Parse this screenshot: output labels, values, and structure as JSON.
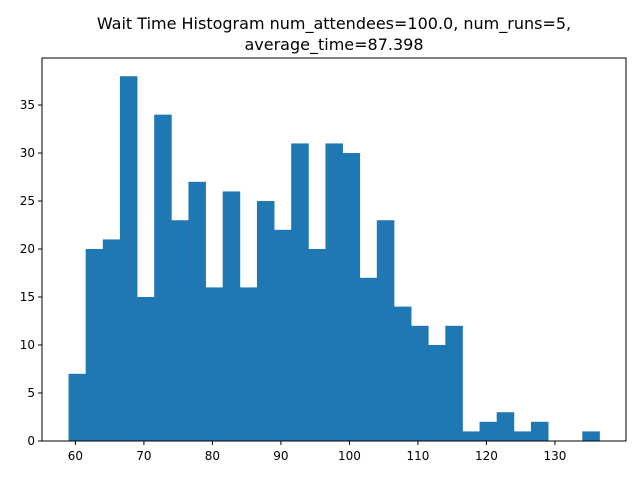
{
  "chart_data": {
    "type": "bar",
    "title_line1": "Wait Time Histogram num_attendees=100.0, num_runs=5,",
    "title_line2": "average_time=87.398",
    "bins": [
      {
        "x0": 59.0,
        "x1": 61.5,
        "count": 7
      },
      {
        "x0": 61.5,
        "x1": 64.0,
        "count": 20
      },
      {
        "x0": 64.0,
        "x1": 66.5,
        "count": 21
      },
      {
        "x0": 66.5,
        "x1": 69.0,
        "count": 38
      },
      {
        "x0": 69.0,
        "x1": 71.5,
        "count": 15
      },
      {
        "x0": 71.5,
        "x1": 74.0,
        "count": 34
      },
      {
        "x0": 74.0,
        "x1": 76.5,
        "count": 23
      },
      {
        "x0": 76.5,
        "x1": 79.0,
        "count": 27
      },
      {
        "x0": 79.0,
        "x1": 81.5,
        "count": 16
      },
      {
        "x0": 81.5,
        "x1": 84.0,
        "count": 26
      },
      {
        "x0": 84.0,
        "x1": 86.5,
        "count": 16
      },
      {
        "x0": 86.5,
        "x1": 89.0,
        "count": 25
      },
      {
        "x0": 89.0,
        "x1": 91.5,
        "count": 22
      },
      {
        "x0": 91.5,
        "x1": 94.0,
        "count": 31
      },
      {
        "x0": 94.0,
        "x1": 96.5,
        "count": 20
      },
      {
        "x0": 96.5,
        "x1": 99.0,
        "count": 31
      },
      {
        "x0": 99.0,
        "x1": 101.5,
        "count": 30
      },
      {
        "x0": 101.5,
        "x1": 104.0,
        "count": 17
      },
      {
        "x0": 104.0,
        "x1": 106.5,
        "count": 23
      },
      {
        "x0": 106.5,
        "x1": 109.0,
        "count": 14
      },
      {
        "x0": 109.0,
        "x1": 111.5,
        "count": 12
      },
      {
        "x0": 111.5,
        "x1": 114.0,
        "count": 10
      },
      {
        "x0": 114.0,
        "x1": 116.5,
        "count": 12
      },
      {
        "x0": 116.5,
        "x1": 119.0,
        "count": 1
      },
      {
        "x0": 119.0,
        "x1": 121.5,
        "count": 2
      },
      {
        "x0": 121.5,
        "x1": 124.0,
        "count": 3
      },
      {
        "x0": 124.0,
        "x1": 126.5,
        "count": 1
      },
      {
        "x0": 126.5,
        "x1": 129.0,
        "count": 2
      },
      {
        "x0": 129.0,
        "x1": 131.5,
        "count": 0
      },
      {
        "x0": 131.5,
        "x1": 134.0,
        "count": 0
      },
      {
        "x0": 134.0,
        "x1": 136.5,
        "count": 1
      }
    ],
    "xlim": [
      55.125,
      140.375
    ],
    "ylim": [
      0,
      39.9
    ],
    "xticks": [
      60,
      70,
      80,
      90,
      100,
      110,
      120,
      130
    ],
    "yticks": [
      0,
      5,
      10,
      15,
      20,
      25,
      30,
      35
    ],
    "xlabel": "",
    "ylabel": "",
    "grid": false,
    "bar_color": "#1f77b4"
  }
}
